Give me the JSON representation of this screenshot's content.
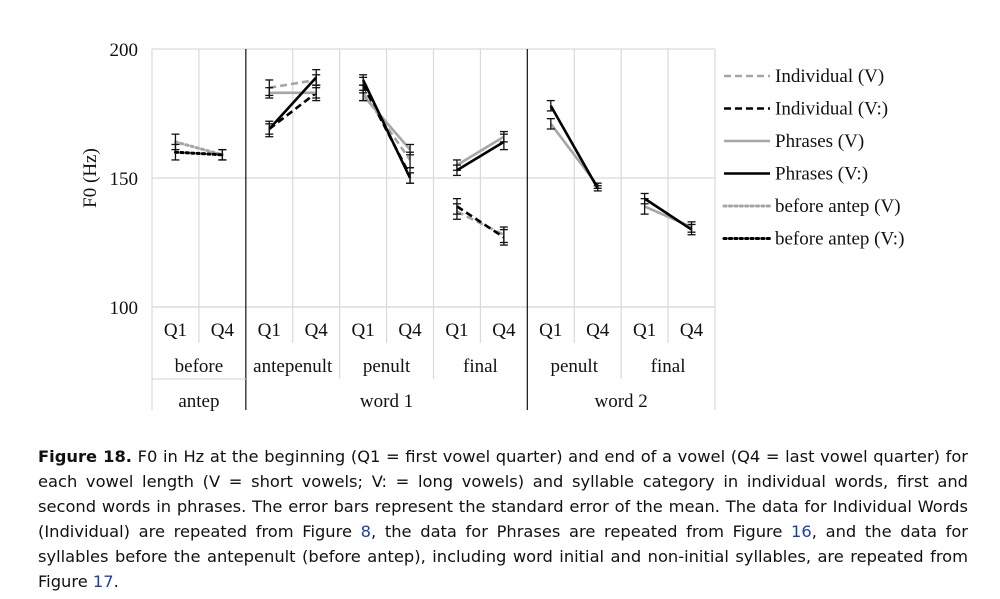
{
  "chart_data": {
    "type": "line",
    "ylabel": "F0 (Hz)",
    "ylim": [
      100,
      200
    ],
    "yticks": [
      100,
      150,
      200
    ],
    "xcolumns": [
      "Q1",
      "Q4",
      "Q1",
      "Q4",
      "Q1",
      "Q4",
      "Q1",
      "Q4",
      "Q1",
      "Q4",
      "Q1",
      "Q4"
    ],
    "syllables": [
      {
        "label": "before",
        "from": 0,
        "to": 1
      },
      {
        "label": "antepenult",
        "from": 2,
        "to": 3
      },
      {
        "label": "penult",
        "from": 4,
        "to": 5
      },
      {
        "label": "final",
        "from": 6,
        "to": 7
      },
      {
        "label": "penult",
        "from": 8,
        "to": 9
      },
      {
        "label": "final",
        "from": 10,
        "to": 11
      }
    ],
    "groups": [
      {
        "label": "antep",
        "from": 0,
        "to": 1
      },
      {
        "label": "word 1",
        "from": 2,
        "to": 7
      },
      {
        "label": "word 2",
        "from": 8,
        "to": 11
      }
    ],
    "grid": true,
    "legend_position": "right",
    "series": [
      {
        "name": "Individual (V)",
        "color": "#a6a6a6",
        "style": "dashed",
        "segments": [
          {
            "x": [
              2,
              3
            ],
            "y": [
              185,
              188
            ],
            "err": [
              3,
              2
            ]
          },
          {
            "x": [
              4,
              5
            ],
            "y": [
              183,
              157
            ],
            "err": [
              3,
              3
            ]
          },
          {
            "x": [
              6,
              7
            ],
            "y": [
              137,
              128
            ],
            "err": [
              3,
              3
            ]
          }
        ]
      },
      {
        "name": "Individual (V:)",
        "color": "#000000",
        "style": "dashed",
        "segments": [
          {
            "x": [
              2,
              3
            ],
            "y": [
              169,
              183
            ],
            "err": [
              3,
              3
            ]
          },
          {
            "x": [
              4,
              5
            ],
            "y": [
              186,
              151
            ],
            "err": [
              3,
              3
            ]
          },
          {
            "x": [
              6,
              7
            ],
            "y": [
              139,
              127
            ],
            "err": [
              3,
              3
            ]
          }
        ]
      },
      {
        "name": "Phrases (V)",
        "color": "#a6a6a6",
        "style": "solid",
        "segments": [
          {
            "x": [
              2,
              3
            ],
            "y": [
              183,
              183
            ],
            "err": [
              2,
              2
            ]
          },
          {
            "x": [
              4,
              5
            ],
            "y": [
              182,
              161
            ],
            "err": [
              2,
              2
            ]
          },
          {
            "x": [
              6,
              7
            ],
            "y": [
              155,
              166
            ],
            "err": [
              2,
              2
            ]
          },
          {
            "x": [
              8,
              9
            ],
            "y": [
              171,
              147
            ],
            "err": [
              2,
              1
            ]
          },
          {
            "x": [
              10,
              11
            ],
            "y": [
              139,
              131
            ],
            "err": [
              3,
              2
            ]
          }
        ]
      },
      {
        "name": "Phrases (V:)",
        "color": "#000000",
        "style": "solid",
        "segments": [
          {
            "x": [
              2,
              3
            ],
            "y": [
              169,
              189
            ],
            "err": [
              2,
              3
            ]
          },
          {
            "x": [
              4,
              5
            ],
            "y": [
              188,
              150
            ],
            "err": [
              2,
              2
            ]
          },
          {
            "x": [
              6,
              7
            ],
            "y": [
              153,
              164
            ],
            "err": [
              2,
              3
            ]
          },
          {
            "x": [
              8,
              9
            ],
            "y": [
              178,
              146
            ],
            "err": [
              2,
              1
            ]
          },
          {
            "x": [
              10,
              11
            ],
            "y": [
              142,
              130
            ],
            "err": [
              2,
              2
            ]
          }
        ]
      },
      {
        "name": "before antep (V)",
        "color": "#a6a6a6",
        "style": "dotted",
        "segments": [
          {
            "x": [
              0,
              1
            ],
            "y": [
              164,
              159
            ],
            "err": [
              3,
              2
            ]
          }
        ]
      },
      {
        "name": "before antep (V:)",
        "color": "#000000",
        "style": "dotted",
        "segments": [
          {
            "x": [
              0,
              1
            ],
            "y": [
              160,
              159
            ],
            "err": [
              3,
              2
            ]
          }
        ]
      }
    ]
  },
  "caption": {
    "label": "Figure 18.",
    "text_1": "F0 in Hz at the beginning (Q1 = first vowel quarter) and end of a vowel (Q4 = last vowel quarter) for each vowel length (V = short vowels; V: = long vowels) and syllable category in individual words, first and second words in phrases. The error bars represent the standard error of the mean. The data for Individual Words (Individual) are repeated from Figure",
    "ref_1": "8",
    "text_2": ", the data for Phrases are repeated from Figure",
    "ref_2": "16",
    "text_3": ", and the data for syllables before the antepenult (before antep), including word initial and non-initial syllables, are repeated from Figure",
    "ref_3": "17",
    "text_4": "."
  }
}
